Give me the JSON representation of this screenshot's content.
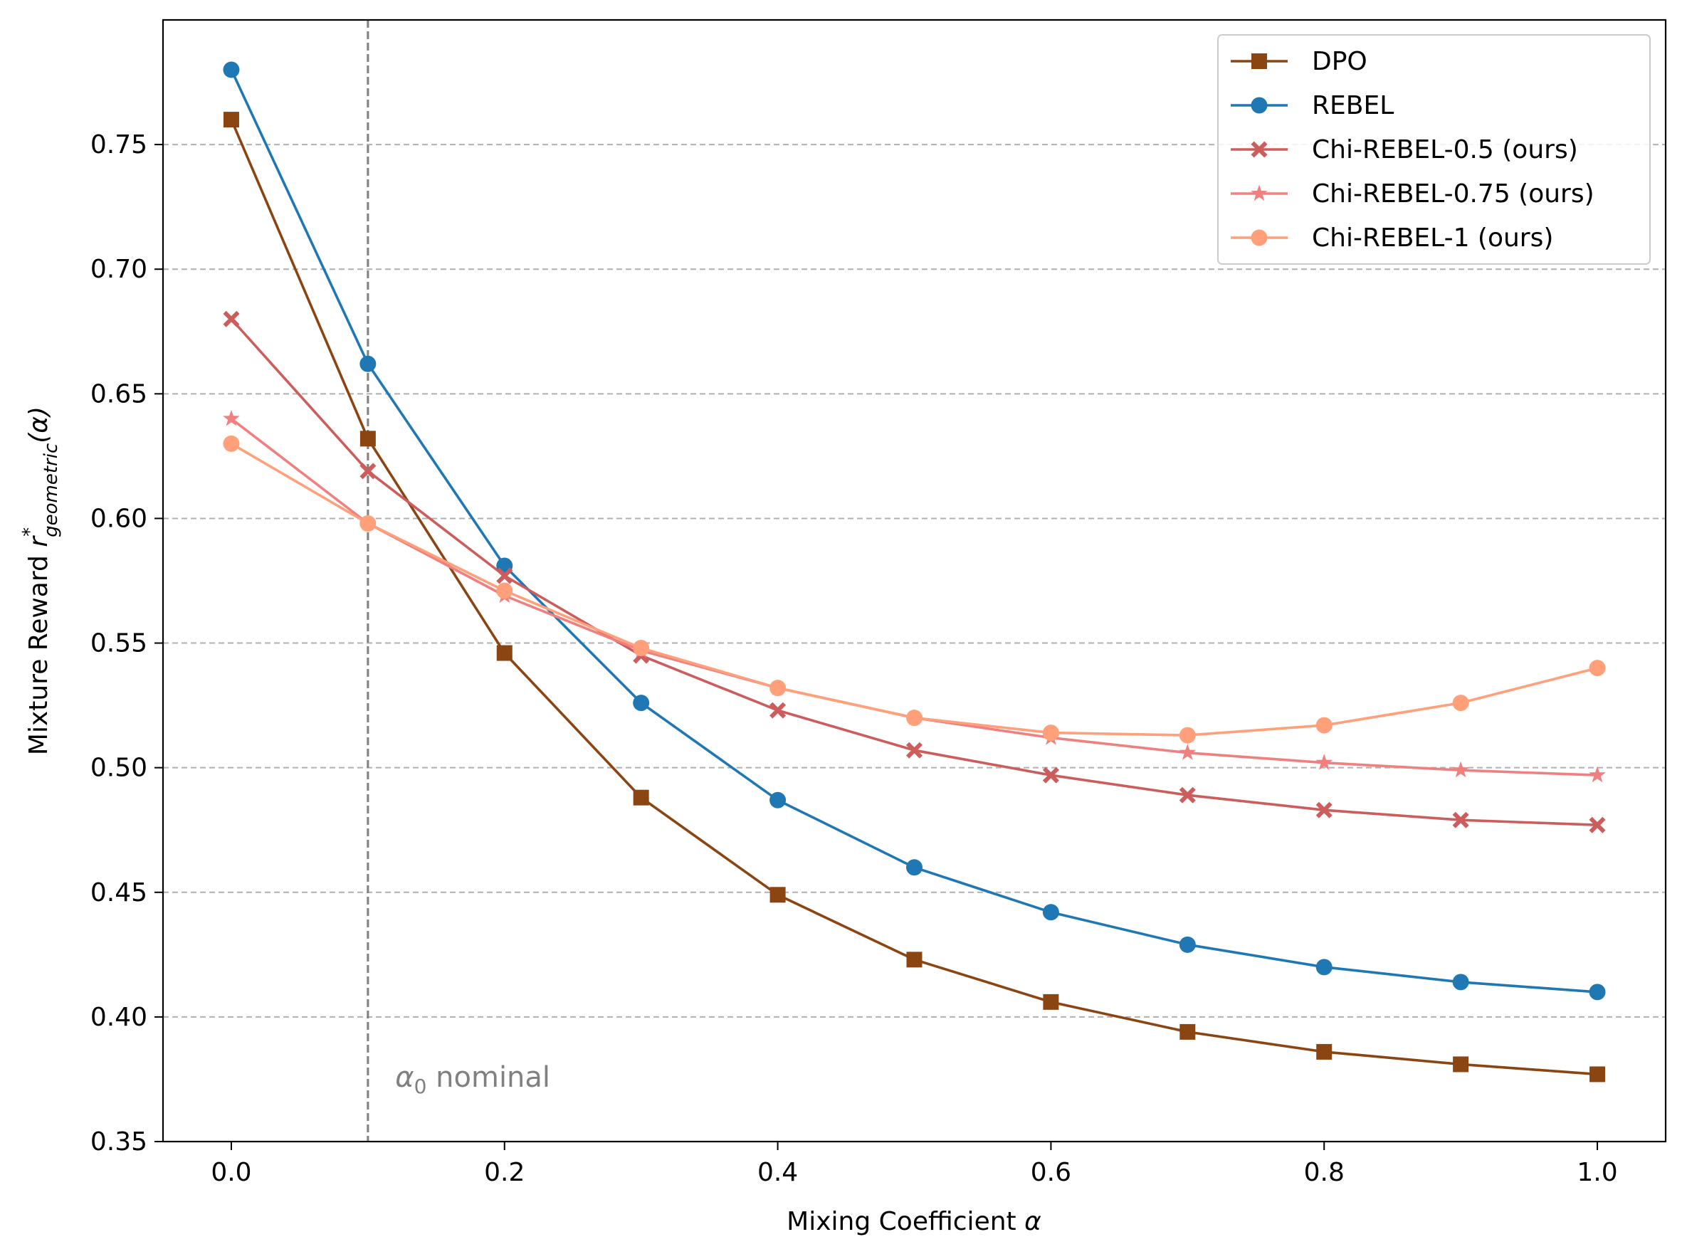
{
  "chart_data": {
    "type": "line",
    "xlabel_prefix": "Mixing Coefficient ",
    "xlabel_symbol": "α",
    "ylabel_prefix": "Mixture Reward ",
    "ylabel_symbol": "r",
    "ylabel_sup": "*",
    "ylabel_sub": "geometric",
    "ylabel_arg": "(α)",
    "xlim": [
      -0.05,
      1.05
    ],
    "ylim": [
      0.35,
      0.8
    ],
    "x": [
      0.0,
      0.1,
      0.2,
      0.3,
      0.4,
      0.5,
      0.6,
      0.7,
      0.8,
      0.9,
      1.0
    ],
    "x_ticks": [
      0.0,
      0.2,
      0.4,
      0.6,
      0.8,
      1.0
    ],
    "x_tick_labels": [
      "0.0",
      "0.2",
      "0.4",
      "0.6",
      "0.8",
      "1.0"
    ],
    "y_ticks": [
      0.35,
      0.4,
      0.45,
      0.5,
      0.55,
      0.6,
      0.65,
      0.7,
      0.75
    ],
    "y_tick_labels": [
      "0.35",
      "0.40",
      "0.45",
      "0.50",
      "0.55",
      "0.60",
      "0.65",
      "0.70",
      "0.75"
    ],
    "grid": "horizontal dashed",
    "legend_position": "top-right",
    "reference_line": {
      "x": 0.1,
      "label_symbol": "α",
      "label_sub": "0",
      "label_text": " nominal",
      "label_anchor": [
        0.12,
        0.372
      ]
    },
    "series": [
      {
        "name": "DPO",
        "color": "#8B4513",
        "marker": "square",
        "values": [
          0.76,
          0.632,
          0.546,
          0.488,
          0.449,
          0.423,
          0.406,
          0.394,
          0.386,
          0.381,
          0.377
        ]
      },
      {
        "name": "REBEL",
        "color": "#1F77B4",
        "marker": "circle",
        "values": [
          0.78,
          0.662,
          0.581,
          0.526,
          0.487,
          0.46,
          0.442,
          0.429,
          0.42,
          0.414,
          0.41
        ]
      },
      {
        "name": "Chi-REBEL-0.5 (ours)",
        "color": "#CD5C5C",
        "marker": "x",
        "values": [
          0.68,
          0.619,
          0.577,
          0.545,
          0.523,
          0.507,
          0.497,
          0.489,
          0.483,
          0.479,
          0.477
        ]
      },
      {
        "name": "Chi-REBEL-0.75 (ours)",
        "color": "#F08080",
        "marker": "star",
        "values": [
          0.64,
          0.598,
          0.569,
          0.547,
          0.532,
          0.52,
          0.512,
          0.506,
          0.502,
          0.499,
          0.497
        ]
      },
      {
        "name": "Chi-REBEL-1 (ours)",
        "color": "#FFA07A",
        "marker": "circle",
        "values": [
          0.63,
          0.598,
          0.571,
          0.548,
          0.532,
          0.52,
          0.514,
          0.513,
          0.517,
          0.526,
          0.54
        ]
      }
    ]
  }
}
